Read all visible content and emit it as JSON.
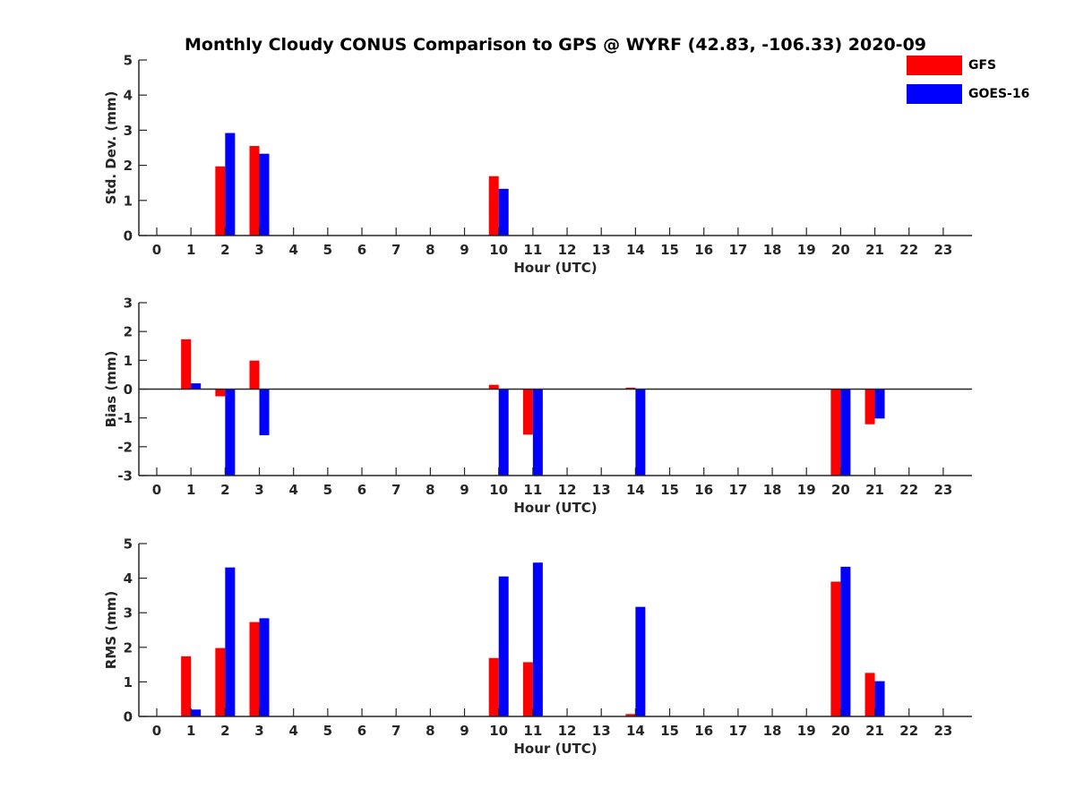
{
  "title": "Monthly Cloudy CONUS Comparison to GPS @ WYRF (42.83, -106.33) 2020-09",
  "legend": {
    "placement": "top-right",
    "items": [
      {
        "name": "GFS",
        "color": "#ff0000"
      },
      {
        "name": "GOES-16",
        "color": "#0000ff"
      }
    ]
  },
  "chart_data": [
    {
      "type": "bar",
      "xlabel": "Hour (UTC)",
      "ylabel": "Std. Dev. (mm)",
      "ylim": [
        0,
        5
      ],
      "yticks": [
        "0",
        "1",
        "2",
        "3",
        "4",
        "5"
      ],
      "categories": [
        "0",
        "1",
        "2",
        "3",
        "4",
        "5",
        "6",
        "7",
        "8",
        "9",
        "10",
        "11",
        "12",
        "13",
        "14",
        "15",
        "16",
        "17",
        "18",
        "19",
        "20",
        "21",
        "22",
        "23"
      ],
      "series": [
        {
          "name": "GFS",
          "color": "#ff0000",
          "values": [
            null,
            null,
            1.97,
            2.55,
            null,
            null,
            null,
            null,
            null,
            null,
            1.69,
            null,
            null,
            null,
            null,
            null,
            null,
            null,
            null,
            null,
            null,
            null,
            null,
            null
          ]
        },
        {
          "name": "GOES-16",
          "color": "#0000ff",
          "values": [
            null,
            null,
            2.92,
            2.33,
            null,
            null,
            null,
            null,
            null,
            null,
            1.33,
            null,
            null,
            null,
            null,
            null,
            null,
            null,
            null,
            null,
            null,
            null,
            null,
            null
          ]
        }
      ]
    },
    {
      "type": "bar",
      "xlabel": "Hour (UTC)",
      "ylabel": "Bias (mm)",
      "ylim": [
        -3,
        3
      ],
      "yticks": [
        "-3",
        "-2",
        "-1",
        "0",
        "1",
        "2",
        "3"
      ],
      "zero_line": true,
      "categories": [
        "0",
        "1",
        "2",
        "3",
        "4",
        "5",
        "6",
        "7",
        "8",
        "9",
        "10",
        "11",
        "12",
        "13",
        "14",
        "15",
        "16",
        "17",
        "18",
        "19",
        "20",
        "21",
        "22",
        "23"
      ],
      "series": [
        {
          "name": "GFS",
          "color": "#ff0000",
          "values": [
            null,
            1.73,
            -0.25,
            0.99,
            null,
            null,
            null,
            null,
            null,
            null,
            0.15,
            -1.58,
            null,
            null,
            0.05,
            null,
            null,
            null,
            null,
            null,
            -3.0,
            -1.22,
            null,
            null
          ]
        },
        {
          "name": "GOES-16",
          "color": "#0000ff",
          "values": [
            null,
            0.2,
            -3.0,
            -1.6,
            null,
            null,
            null,
            null,
            null,
            null,
            -3.0,
            -3.0,
            null,
            null,
            -3.0,
            null,
            null,
            null,
            null,
            null,
            -3.0,
            -1.02,
            null,
            null
          ]
        }
      ]
    },
    {
      "type": "bar",
      "xlabel": "Hour (UTC)",
      "ylabel": "RMS (mm)",
      "ylim": [
        0,
        5
      ],
      "yticks": [
        "0",
        "1",
        "2",
        "3",
        "4",
        "5"
      ],
      "categories": [
        "0",
        "1",
        "2",
        "3",
        "4",
        "5",
        "6",
        "7",
        "8",
        "9",
        "10",
        "11",
        "12",
        "13",
        "14",
        "15",
        "16",
        "17",
        "18",
        "19",
        "20",
        "21",
        "22",
        "23"
      ],
      "series": [
        {
          "name": "GFS",
          "color": "#ff0000",
          "values": [
            null,
            1.74,
            1.98,
            2.73,
            null,
            null,
            null,
            null,
            null,
            null,
            1.69,
            1.57,
            null,
            null,
            0.07,
            null,
            null,
            null,
            null,
            null,
            3.9,
            1.26,
            null,
            null
          ]
        },
        {
          "name": "GOES-16",
          "color": "#0000ff",
          "values": [
            null,
            0.2,
            4.31,
            2.84,
            null,
            null,
            null,
            null,
            null,
            null,
            4.05,
            4.45,
            null,
            null,
            3.17,
            null,
            null,
            null,
            null,
            null,
            4.33,
            1.02,
            null,
            null
          ]
        }
      ]
    }
  ]
}
